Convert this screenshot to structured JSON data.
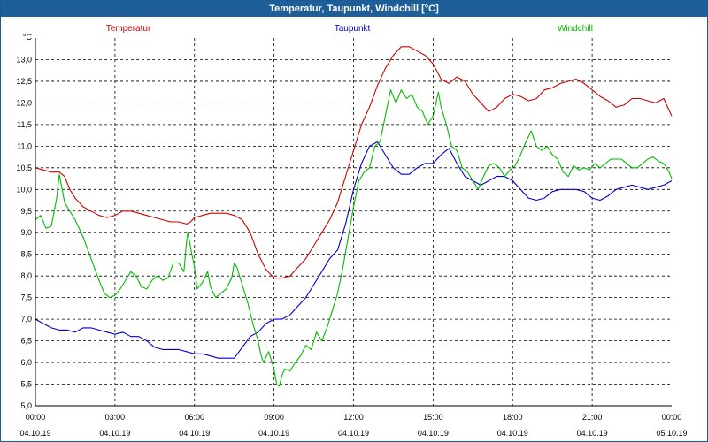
{
  "window": {
    "title": "Temperatur, Taupunkt, Windchill [°C]"
  },
  "chart_data": {
    "type": "line",
    "title": "Temperatur, Taupunkt, Windchill [°C]",
    "ylabel": "°C",
    "xlabel": "",
    "ylim": [
      5.0,
      13.5
    ],
    "xlim": [
      0,
      24
    ],
    "grid": true,
    "y_ticks": [
      "5,0",
      "5,5",
      "6,0",
      "6,5",
      "7,0",
      "7,5",
      "8,0",
      "8,5",
      "9,0",
      "9,5",
      "10,0",
      "10,5",
      "11,0",
      "11,5",
      "12,0",
      "12,5",
      "13,0"
    ],
    "x_ticks": [
      {
        "time": "00:00",
        "date": "04.10.19"
      },
      {
        "time": "03:00",
        "date": "04.10.19"
      },
      {
        "time": "06:00",
        "date": "04.10.19"
      },
      {
        "time": "09:00",
        "date": "04.10.19"
      },
      {
        "time": "12:00",
        "date": "04.10.19"
      },
      {
        "time": "15:00",
        "date": "04.10.19"
      },
      {
        "time": "18:00",
        "date": "04.10.19"
      },
      {
        "time": "21:00",
        "date": "04.10.19"
      },
      {
        "time": "00:00",
        "date": "05.10.19"
      }
    ],
    "legend": [
      {
        "name": "Temperatur",
        "color": "#cc0000"
      },
      {
        "name": "Taupunkt",
        "color": "#0000cc"
      },
      {
        "name": "Windchill",
        "color": "#00bb00"
      }
    ],
    "series": [
      {
        "name": "Temperatur",
        "color": "#cc0000",
        "points": [
          [
            0,
            10.5
          ],
          [
            0.3,
            10.45
          ],
          [
            0.6,
            10.4
          ],
          [
            0.9,
            10.4
          ],
          [
            1.1,
            10.3
          ],
          [
            1.3,
            10.0
          ],
          [
            1.5,
            9.8
          ],
          [
            1.8,
            9.6
          ],
          [
            2.1,
            9.5
          ],
          [
            2.4,
            9.4
          ],
          [
            2.7,
            9.35
          ],
          [
            3.0,
            9.4
          ],
          [
            3.3,
            9.5
          ],
          [
            3.6,
            9.5
          ],
          [
            3.9,
            9.45
          ],
          [
            4.2,
            9.4
          ],
          [
            4.5,
            9.35
          ],
          [
            4.8,
            9.3
          ],
          [
            5.1,
            9.25
          ],
          [
            5.4,
            9.25
          ],
          [
            5.7,
            9.2
          ],
          [
            5.85,
            9.25
          ],
          [
            6.0,
            9.35
          ],
          [
            6.3,
            9.4
          ],
          [
            6.6,
            9.45
          ],
          [
            6.9,
            9.45
          ],
          [
            7.2,
            9.45
          ],
          [
            7.5,
            9.4
          ],
          [
            7.8,
            9.3
          ],
          [
            8.1,
            9.0
          ],
          [
            8.4,
            8.5
          ],
          [
            8.7,
            8.15
          ],
          [
            9.0,
            7.95
          ],
          [
            9.3,
            7.95
          ],
          [
            9.6,
            8.0
          ],
          [
            9.9,
            8.2
          ],
          [
            10.2,
            8.4
          ],
          [
            10.5,
            8.7
          ],
          [
            10.8,
            9.0
          ],
          [
            11.1,
            9.3
          ],
          [
            11.4,
            9.7
          ],
          [
            11.7,
            10.3
          ],
          [
            12.0,
            10.9
          ],
          [
            12.3,
            11.5
          ],
          [
            12.6,
            11.9
          ],
          [
            12.9,
            12.4
          ],
          [
            13.2,
            12.8
          ],
          [
            13.5,
            13.1
          ],
          [
            13.8,
            13.3
          ],
          [
            14.1,
            13.3
          ],
          [
            14.4,
            13.2
          ],
          [
            14.7,
            13.1
          ],
          [
            15.0,
            12.9
          ],
          [
            15.3,
            12.55
          ],
          [
            15.6,
            12.45
          ],
          [
            15.9,
            12.6
          ],
          [
            16.2,
            12.5
          ],
          [
            16.5,
            12.2
          ],
          [
            16.8,
            12.0
          ],
          [
            17.1,
            11.8
          ],
          [
            17.4,
            11.9
          ],
          [
            17.7,
            12.1
          ],
          [
            18.0,
            12.2
          ],
          [
            18.3,
            12.15
          ],
          [
            18.6,
            12.05
          ],
          [
            18.9,
            12.1
          ],
          [
            19.2,
            12.3
          ],
          [
            19.5,
            12.35
          ],
          [
            19.8,
            12.45
          ],
          [
            20.1,
            12.5
          ],
          [
            20.4,
            12.55
          ],
          [
            20.7,
            12.45
          ],
          [
            21.0,
            12.3
          ],
          [
            21.3,
            12.15
          ],
          [
            21.6,
            12.05
          ],
          [
            21.9,
            11.9
          ],
          [
            22.2,
            11.95
          ],
          [
            22.5,
            12.1
          ],
          [
            22.8,
            12.1
          ],
          [
            23.1,
            12.05
          ],
          [
            23.4,
            12.0
          ],
          [
            23.7,
            12.1
          ],
          [
            24.0,
            11.7
          ]
        ]
      },
      {
        "name": "Taupunkt",
        "color": "#0000cc",
        "points": [
          [
            0,
            7.0
          ],
          [
            0.3,
            6.9
          ],
          [
            0.6,
            6.8
          ],
          [
            0.9,
            6.75
          ],
          [
            1.2,
            6.75
          ],
          [
            1.5,
            6.7
          ],
          [
            1.8,
            6.8
          ],
          [
            2.1,
            6.8
          ],
          [
            2.4,
            6.75
          ],
          [
            2.7,
            6.7
          ],
          [
            3.0,
            6.65
          ],
          [
            3.3,
            6.7
          ],
          [
            3.6,
            6.6
          ],
          [
            3.9,
            6.6
          ],
          [
            4.2,
            6.5
          ],
          [
            4.5,
            6.35
          ],
          [
            4.8,
            6.3
          ],
          [
            5.1,
            6.3
          ],
          [
            5.4,
            6.3
          ],
          [
            5.7,
            6.25
          ],
          [
            6.0,
            6.2
          ],
          [
            6.3,
            6.2
          ],
          [
            6.6,
            6.15
          ],
          [
            6.9,
            6.1
          ],
          [
            7.2,
            6.1
          ],
          [
            7.5,
            6.1
          ],
          [
            7.8,
            6.35
          ],
          [
            8.1,
            6.6
          ],
          [
            8.4,
            6.7
          ],
          [
            8.7,
            6.9
          ],
          [
            9.0,
            7.0
          ],
          [
            9.3,
            7.0
          ],
          [
            9.6,
            7.1
          ],
          [
            9.9,
            7.3
          ],
          [
            10.2,
            7.5
          ],
          [
            10.5,
            7.8
          ],
          [
            10.8,
            8.1
          ],
          [
            11.1,
            8.4
          ],
          [
            11.4,
            8.6
          ],
          [
            11.7,
            9.2
          ],
          [
            12.0,
            10.0
          ],
          [
            12.3,
            10.6
          ],
          [
            12.6,
            11.0
          ],
          [
            12.9,
            11.1
          ],
          [
            13.2,
            10.8
          ],
          [
            13.5,
            10.5
          ],
          [
            13.8,
            10.35
          ],
          [
            14.1,
            10.35
          ],
          [
            14.4,
            10.5
          ],
          [
            14.7,
            10.6
          ],
          [
            15.0,
            10.6
          ],
          [
            15.3,
            10.8
          ],
          [
            15.6,
            10.95
          ],
          [
            15.9,
            10.6
          ],
          [
            16.2,
            10.3
          ],
          [
            16.5,
            10.2
          ],
          [
            16.8,
            10.1
          ],
          [
            17.1,
            10.2
          ],
          [
            17.4,
            10.3
          ],
          [
            17.7,
            10.3
          ],
          [
            18.0,
            10.2
          ],
          [
            18.3,
            10.0
          ],
          [
            18.6,
            9.8
          ],
          [
            18.9,
            9.75
          ],
          [
            19.2,
            9.8
          ],
          [
            19.5,
            9.95
          ],
          [
            19.8,
            10.0
          ],
          [
            20.1,
            10.0
          ],
          [
            20.4,
            10.0
          ],
          [
            20.7,
            9.95
          ],
          [
            21.0,
            9.8
          ],
          [
            21.3,
            9.75
          ],
          [
            21.6,
            9.85
          ],
          [
            21.9,
            10.0
          ],
          [
            22.2,
            10.05
          ],
          [
            22.5,
            10.1
          ],
          [
            22.8,
            10.05
          ],
          [
            23.1,
            10.0
          ],
          [
            23.4,
            10.05
          ],
          [
            23.7,
            10.1
          ],
          [
            24.0,
            10.2
          ]
        ]
      },
      {
        "name": "Windchill",
        "color": "#00bb00",
        "points": [
          [
            0,
            9.3
          ],
          [
            0.2,
            9.4
          ],
          [
            0.4,
            9.1
          ],
          [
            0.6,
            9.15
          ],
          [
            0.8,
            9.8
          ],
          [
            0.9,
            10.35
          ],
          [
            1.1,
            9.7
          ],
          [
            1.3,
            9.5
          ],
          [
            1.5,
            9.3
          ],
          [
            1.8,
            8.9
          ],
          [
            2.1,
            8.4
          ],
          [
            2.4,
            7.9
          ],
          [
            2.6,
            7.6
          ],
          [
            2.8,
            7.5
          ],
          [
            3.0,
            7.55
          ],
          [
            3.2,
            7.7
          ],
          [
            3.4,
            7.9
          ],
          [
            3.6,
            8.1
          ],
          [
            3.8,
            8.0
          ],
          [
            4.0,
            7.75
          ],
          [
            4.2,
            7.7
          ],
          [
            4.4,
            7.9
          ],
          [
            4.6,
            8.0
          ],
          [
            4.8,
            7.9
          ],
          [
            5.0,
            7.95
          ],
          [
            5.2,
            8.3
          ],
          [
            5.4,
            8.3
          ],
          [
            5.6,
            8.1
          ],
          [
            5.7,
            8.8
          ],
          [
            5.75,
            9.0
          ],
          [
            5.9,
            8.5
          ],
          [
            6.0,
            8.2
          ],
          [
            6.1,
            7.7
          ],
          [
            6.3,
            7.85
          ],
          [
            6.5,
            8.1
          ],
          [
            6.6,
            7.75
          ],
          [
            6.8,
            7.5
          ],
          [
            7.0,
            7.6
          ],
          [
            7.2,
            7.7
          ],
          [
            7.4,
            7.95
          ],
          [
            7.5,
            8.3
          ],
          [
            7.6,
            8.2
          ],
          [
            7.8,
            7.8
          ],
          [
            8.0,
            7.4
          ],
          [
            8.2,
            6.9
          ],
          [
            8.4,
            6.5
          ],
          [
            8.5,
            6.2
          ],
          [
            8.6,
            6.0
          ],
          [
            8.8,
            6.25
          ],
          [
            9.0,
            5.85
          ],
          [
            9.1,
            5.5
          ],
          [
            9.2,
            5.45
          ],
          [
            9.3,
            5.7
          ],
          [
            9.4,
            5.85
          ],
          [
            9.6,
            5.8
          ],
          [
            9.8,
            6.0
          ],
          [
            10.0,
            6.15
          ],
          [
            10.2,
            6.4
          ],
          [
            10.4,
            6.3
          ],
          [
            10.6,
            6.7
          ],
          [
            10.8,
            6.5
          ],
          [
            11.0,
            6.8
          ],
          [
            11.2,
            7.2
          ],
          [
            11.4,
            7.6
          ],
          [
            11.6,
            8.2
          ],
          [
            11.8,
            8.9
          ],
          [
            12.0,
            9.6
          ],
          [
            12.2,
            10.2
          ],
          [
            12.4,
            10.4
          ],
          [
            12.6,
            10.5
          ],
          [
            12.8,
            11.0
          ],
          [
            13.0,
            11.1
          ],
          [
            13.2,
            11.7
          ],
          [
            13.4,
            12.3
          ],
          [
            13.6,
            12.0
          ],
          [
            13.8,
            12.3
          ],
          [
            14.0,
            12.1
          ],
          [
            14.2,
            12.2
          ],
          [
            14.4,
            11.9
          ],
          [
            14.6,
            11.8
          ],
          [
            14.8,
            11.5
          ],
          [
            15.0,
            11.7
          ],
          [
            15.2,
            12.25
          ],
          [
            15.3,
            11.9
          ],
          [
            15.5,
            11.5
          ],
          [
            15.7,
            11.0
          ],
          [
            15.9,
            10.9
          ],
          [
            16.1,
            10.5
          ],
          [
            16.3,
            10.4
          ],
          [
            16.5,
            10.2
          ],
          [
            16.7,
            10.0
          ],
          [
            16.9,
            10.3
          ],
          [
            17.1,
            10.55
          ],
          [
            17.3,
            10.6
          ],
          [
            17.5,
            10.5
          ],
          [
            17.7,
            10.3
          ],
          [
            17.9,
            10.45
          ],
          [
            18.1,
            10.55
          ],
          [
            18.3,
            10.8
          ],
          [
            18.5,
            11.1
          ],
          [
            18.7,
            11.35
          ],
          [
            18.9,
            11.0
          ],
          [
            19.1,
            10.9
          ],
          [
            19.3,
            11.0
          ],
          [
            19.5,
            10.8
          ],
          [
            19.7,
            10.7
          ],
          [
            19.9,
            10.4
          ],
          [
            20.1,
            10.3
          ],
          [
            20.3,
            10.55
          ],
          [
            20.5,
            10.45
          ],
          [
            20.7,
            10.5
          ],
          [
            20.9,
            10.45
          ],
          [
            21.1,
            10.6
          ],
          [
            21.3,
            10.5
          ],
          [
            21.5,
            10.6
          ],
          [
            21.7,
            10.7
          ],
          [
            21.9,
            10.7
          ],
          [
            22.1,
            10.7
          ],
          [
            22.3,
            10.6
          ],
          [
            22.5,
            10.5
          ],
          [
            22.7,
            10.5
          ],
          [
            22.9,
            10.6
          ],
          [
            23.1,
            10.7
          ],
          [
            23.3,
            10.75
          ],
          [
            23.5,
            10.65
          ],
          [
            23.7,
            10.6
          ],
          [
            23.9,
            10.4
          ],
          [
            24.0,
            10.25
          ]
        ]
      }
    ]
  }
}
